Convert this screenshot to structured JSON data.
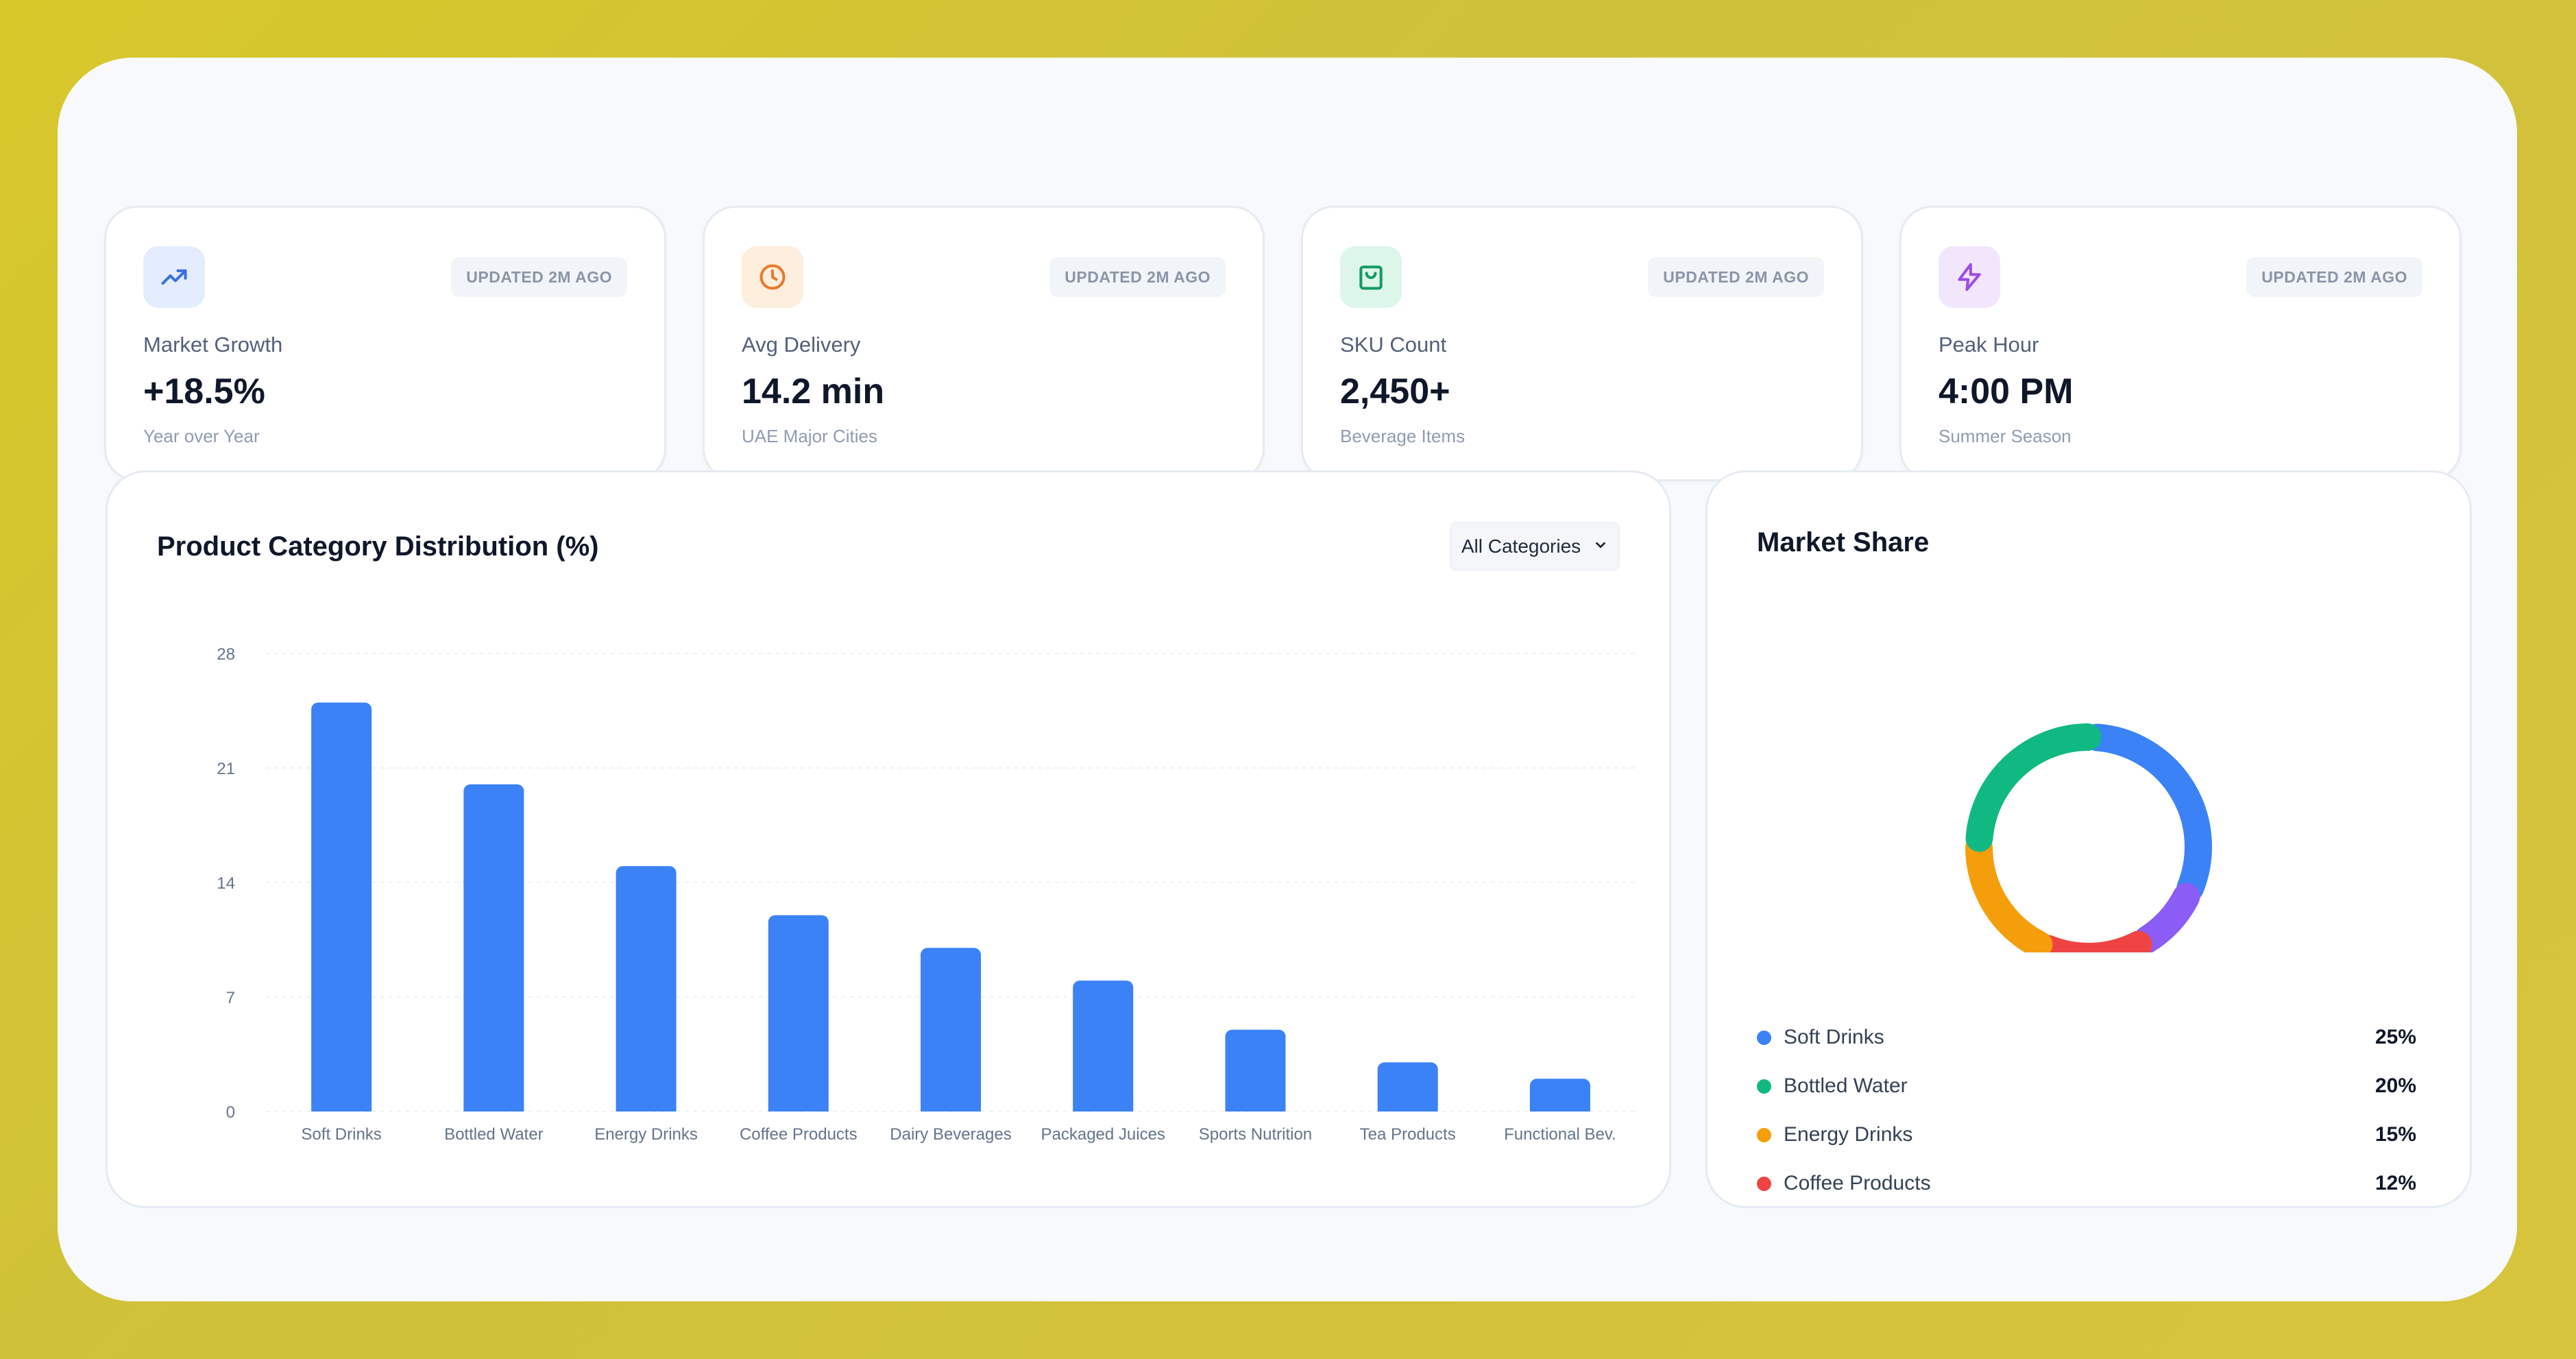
{
  "kpis": [
    {
      "icon": "trending-up-icon",
      "badge": "UPDATED 2M AGO",
      "label": "Market Growth",
      "value": "+18.5%",
      "sub": "Year over Year",
      "accent": "#3b6fe0",
      "tint": "#e3edfd"
    },
    {
      "icon": "clock-icon",
      "badge": "UPDATED 2M AGO",
      "label": "Avg Delivery",
      "value": "14.2 min",
      "sub": "UAE Major Cities",
      "accent": "#ea7a2a",
      "tint": "#fdeedd"
    },
    {
      "icon": "shopping-bag-icon",
      "badge": "UPDATED 2M AGO",
      "label": "SKU Count",
      "value": "2,450+",
      "sub": "Beverage Items",
      "accent": "#149a62",
      "tint": "#dcf6ea"
    },
    {
      "icon": "lightning-icon",
      "badge": "UPDATED 2M AGO",
      "label": "Peak Hour",
      "value": "4:00 PM",
      "sub": "Summer Season",
      "accent": "#9b4de6",
      "tint": "#f2e6fd"
    }
  ],
  "bar_panel": {
    "title": "Product Category Distribution (%)",
    "filter_label": "All Categories"
  },
  "share_panel": {
    "title": "Market Share"
  },
  "chart_data": [
    {
      "type": "bar",
      "title": "Product Category Distribution (%)",
      "categories": [
        "Soft Drinks",
        "Bottled Water",
        "Energy Drinks",
        "Coffee Products",
        "Dairy Beverages",
        "Packaged Juices",
        "Sports Nutrition",
        "Tea Products",
        "Functional Bev."
      ],
      "values": [
        25,
        20,
        15,
        12,
        10,
        8,
        5,
        3,
        2
      ],
      "ylim": [
        0,
        28
      ],
      "yticks": [
        0,
        7,
        14,
        21,
        28
      ],
      "grid": true,
      "color": "#3b82f6"
    },
    {
      "type": "pie",
      "title": "Market Share",
      "donut": true,
      "slices": [
        {
          "label": "Soft Drinks",
          "value": 25,
          "display": "25%",
          "color": "#3b82f6",
          "in_legend": true
        },
        {
          "label": "",
          "value": 8,
          "color": "#8b5cf6",
          "in_legend": false
        },
        {
          "label": "Coffee Products",
          "value": 12,
          "display": "12%",
          "color": "#ef4444",
          "in_legend": true
        },
        {
          "label": "Energy Drinks",
          "value": 15,
          "display": "15%",
          "color": "#f59e0b",
          "in_legend": true
        },
        {
          "label": "Bottled Water",
          "value": 20,
          "display": "20%",
          "color": "#10b981",
          "in_legend": true
        }
      ],
      "legend": [
        "Soft Drinks",
        "Bottled Water",
        "Energy Drinks",
        "Coffee Products"
      ]
    }
  ]
}
